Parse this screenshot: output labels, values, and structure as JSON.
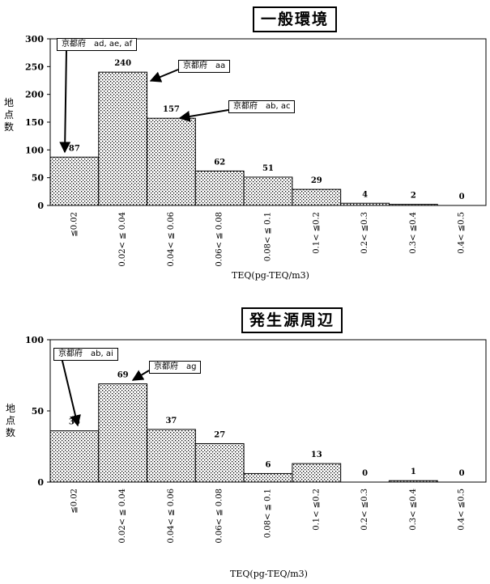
{
  "chart_data": [
    {
      "type": "bar",
      "title": "一般環境",
      "ylabel": "地点数",
      "xlabel": "TEQ(pg-TEQ/m3)",
      "categories": [
        "≦0.02",
        "0.02< ≦ 0.04",
        "0.04< ≦ 0.06",
        "0.06< ≦ 0.08",
        "0.08< ≦ 0.1",
        "0.1< ≦0.2",
        "0.2< ≦0.3",
        "0.3< ≦0.4",
        "0.4< ≦0.5"
      ],
      "values": [
        87,
        240,
        157,
        62,
        51,
        29,
        4,
        2,
        0
      ],
      "data_labels": [
        "87",
        "240",
        "157",
        "62",
        "51",
        "29",
        "4",
        "2",
        "0"
      ],
      "ylim": [
        0,
        300
      ],
      "yticks": [
        0,
        50,
        100,
        150,
        200,
        250,
        300
      ],
      "pattern": "dotted",
      "annotations": [
        {
          "text": "京都府　ad, ae, af",
          "points_to": "≦0.02"
        },
        {
          "text": "京都府　aa",
          "points_to": "0.02< ≦ 0.04"
        },
        {
          "text": "京都府　ab, ac",
          "points_to": "0.04< ≦ 0.06"
        }
      ]
    },
    {
      "type": "bar",
      "title": "発生源周辺",
      "ylabel": "地点数",
      "xlabel": "TEQ(pg-TEQ/m3)",
      "categories": [
        "≦0.02",
        "0.02< ≦ 0.04",
        "0.04< ≦ 0.06",
        "0.06< ≦ 0.08",
        "0.08< ≦ 0.1",
        "0.1< ≦0.2",
        "0.2< ≦0.3",
        "0.3< ≦0.4",
        "0.4< ≦0.5"
      ],
      "values": [
        36,
        69,
        37,
        27,
        6,
        13,
        0,
        1,
        0
      ],
      "data_labels": [
        "36",
        "69",
        "37",
        "27",
        "6",
        "13",
        "0",
        "1",
        "0"
      ],
      "ylim": [
        0,
        100
      ],
      "yticks": [
        0,
        50,
        100
      ],
      "pattern": "dotted",
      "annotations": [
        {
          "text": "京都府　ab, ai",
          "points_to": "≦0.02"
        },
        {
          "text": "京都府　ag",
          "points_to": "0.02< ≦ 0.04"
        }
      ]
    }
  ]
}
